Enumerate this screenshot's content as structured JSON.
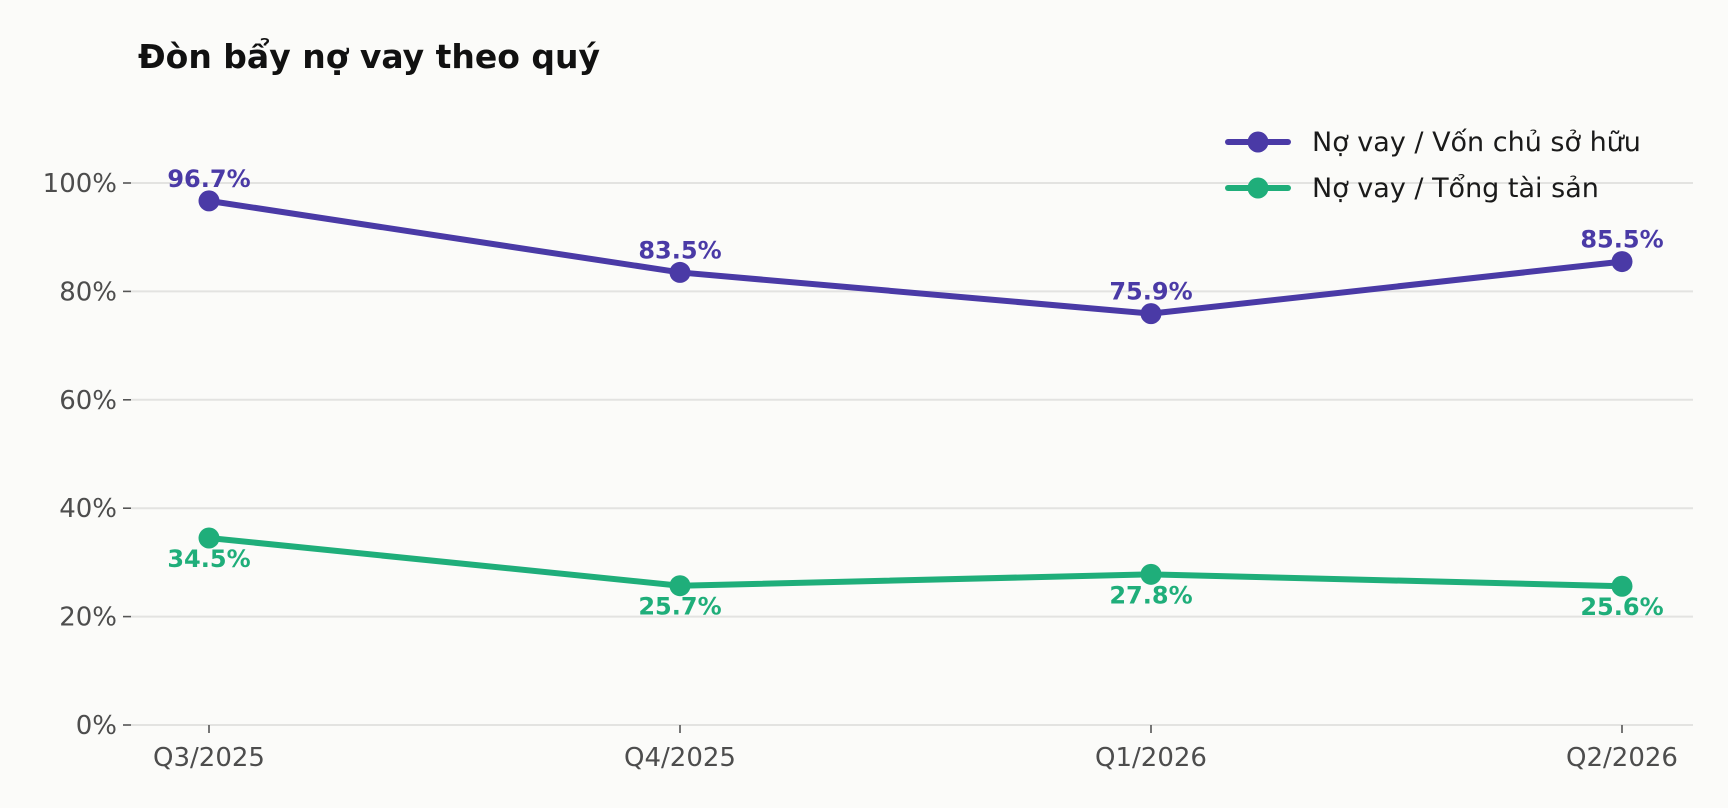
{
  "chart_data": {
    "type": "line",
    "title": "Đòn bẩy nợ vay theo quý",
    "xlabel": "",
    "ylabel": "",
    "categories": [
      "Q3/2025",
      "Q4/2025",
      "Q1/2026",
      "Q2/2026"
    ],
    "ylim": [
      0,
      100
    ],
    "yticks": [
      0,
      20,
      40,
      60,
      80,
      100
    ],
    "ytick_labels": [
      "0%",
      "20%",
      "40%",
      "60%",
      "80%",
      "100%"
    ],
    "grid": "horizontal",
    "legend_position": "top-right",
    "series": [
      {
        "name": "Nợ vay / Vốn chủ sở hữu",
        "color": "#4a3aa6",
        "values": [
          96.7,
          83.5,
          75.9,
          85.5
        ],
        "labels": [
          "96.7%",
          "83.5%",
          "75.9%",
          "85.5%"
        ],
        "label_position": "above"
      },
      {
        "name": "Nợ vay / Tổng tài sản",
        "color": "#1fae7a",
        "values": [
          34.5,
          25.7,
          27.8,
          25.6
        ],
        "labels": [
          "34.5%",
          "25.7%",
          "27.8%",
          "25.6%"
        ],
        "label_position": "below"
      }
    ]
  }
}
